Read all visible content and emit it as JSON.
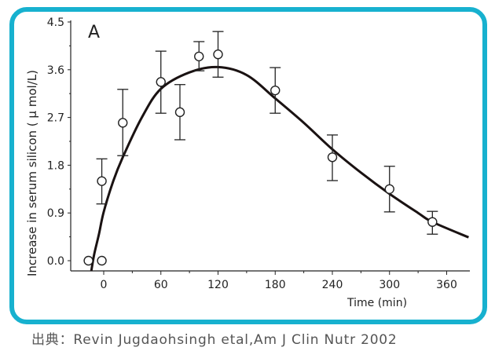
{
  "chart_data": {
    "type": "scatter",
    "panel_label": "A",
    "xlabel": "Time (min)",
    "ylabel": "Increase in serum silicon ( μ mol/L)",
    "xlim": [
      -35,
      384
    ],
    "ylim": [
      0,
      4.5
    ],
    "x_ticks": [
      0,
      60,
      120,
      180,
      240,
      300,
      360
    ],
    "x_tick_labels": [
      "0",
      "60",
      "120",
      "180",
      "240",
      "300",
      "360"
    ],
    "x_minor_ticks": [
      30,
      90,
      150,
      210,
      270,
      330
    ],
    "y_ticks": [
      0,
      0.9,
      1.8,
      2.7,
      3.6,
      4.5
    ],
    "y_tick_labels": [
      "0.0",
      "0.9",
      "1.8",
      "2.7",
      "3.6",
      "4.5"
    ],
    "grid": false,
    "points": [
      {
        "x": -16,
        "y": 0.0,
        "lo": null,
        "hi": null
      },
      {
        "x": -2,
        "y": 0.0,
        "lo": null,
        "hi": null
      },
      {
        "x": -2,
        "y": 1.5,
        "lo": 1.07,
        "hi": 1.92
      },
      {
        "x": 20,
        "y": 2.6,
        "lo": 1.98,
        "hi": 3.23
      },
      {
        "x": 60,
        "y": 3.37,
        "lo": 2.78,
        "hi": 3.95
      },
      {
        "x": 80,
        "y": 2.8,
        "lo": 2.28,
        "hi": 3.32
      },
      {
        "x": 100,
        "y": 3.85,
        "lo": 3.58,
        "hi": 4.13
      },
      {
        "x": 120,
        "y": 3.89,
        "lo": 3.46,
        "hi": 4.32
      },
      {
        "x": 180,
        "y": 3.21,
        "lo": 2.78,
        "hi": 3.64
      },
      {
        "x": 240,
        "y": 1.95,
        "lo": 1.51,
        "hi": 2.37
      },
      {
        "x": 300,
        "y": 1.35,
        "lo": 0.92,
        "hi": 1.78
      },
      {
        "x": 345,
        "y": 0.73,
        "lo": 0.5,
        "hi": 0.93
      }
    ],
    "fit_curve": {
      "x": [
        -13,
        -10,
        -5,
        0,
        10,
        20,
        40,
        60,
        90,
        120,
        150,
        180,
        210,
        240,
        270,
        300,
        330,
        345,
        383
      ],
      "y": [
        -0.19,
        0.12,
        0.5,
        0.92,
        1.5,
        1.95,
        2.7,
        3.24,
        3.55,
        3.65,
        3.5,
        3.06,
        2.6,
        2.1,
        1.66,
        1.26,
        0.9,
        0.73,
        0.44
      ]
    }
  },
  "caption": "出典：Revin Jugdaohsingh etal,Am J Clin Nutr 2002",
  "colors": {
    "frame": "#17b1cf",
    "ink": "#222222",
    "curve": "#1a1212",
    "caption": "#555555"
  }
}
